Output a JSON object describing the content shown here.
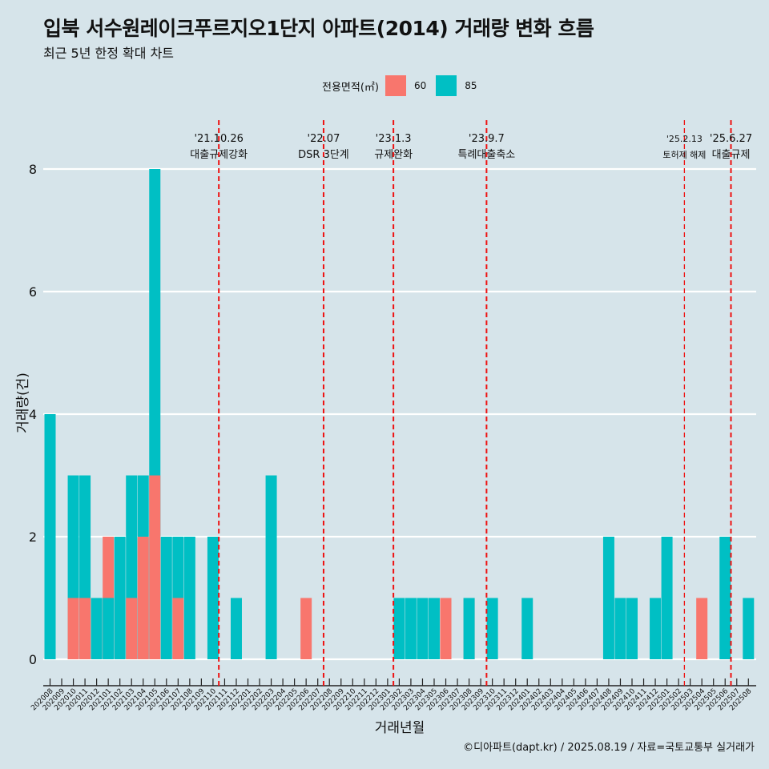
{
  "title": "입북 서수원레이크푸르지오1단지 아파트(2014) 거래량 변화 흐름",
  "subtitle": "최근 5년 한정 확대 차트",
  "legend": {
    "title": "전용면적(㎡)",
    "items": [
      {
        "label": "60",
        "color": "#f8766d"
      },
      {
        "label": "85",
        "color": "#00bfc4"
      }
    ]
  },
  "credit": "©디아파트(dapt.kr) / 2025.08.19 / 자료=국토교통부 실거래가",
  "chart_data": {
    "type": "bar",
    "xlabel": "거래년월",
    "ylabel": "거래량(건)",
    "ylim": [
      0,
      8
    ],
    "yticks": [
      0,
      2,
      4,
      6,
      8
    ],
    "grid": true,
    "legend_position": "top",
    "categories": [
      "202008",
      "202009",
      "202010",
      "202011",
      "202012",
      "202101",
      "202102",
      "202103",
      "202104",
      "202105",
      "202106",
      "202107",
      "202108",
      "202109",
      "202110",
      "202111",
      "202112",
      "202201",
      "202202",
      "202203",
      "202204",
      "202205",
      "202206",
      "202207",
      "202208",
      "202209",
      "202210",
      "202211",
      "202212",
      "202301",
      "202302",
      "202303",
      "202304",
      "202305",
      "202306",
      "202307",
      "202308",
      "202309",
      "202310",
      "202311",
      "202312",
      "202401",
      "202402",
      "202403",
      "202404",
      "202405",
      "202406",
      "202407",
      "202408",
      "202409",
      "202410",
      "202411",
      "202412",
      "202501",
      "202502",
      "202503",
      "202504",
      "202505",
      "202506",
      "202507",
      "202508"
    ],
    "series": [
      {
        "name": "60",
        "color": "#f8766d",
        "values": [
          0,
          0,
          1,
          1,
          1,
          2,
          0,
          1,
          2,
          3,
          0,
          1,
          0,
          0,
          0,
          0,
          0,
          0,
          0,
          0,
          0,
          0,
          1,
          0,
          0,
          0,
          0,
          0,
          0,
          0,
          0,
          0,
          0,
          0,
          1,
          0,
          1,
          0,
          0,
          0,
          0,
          0,
          0,
          0,
          0,
          0,
          0,
          0,
          0,
          1,
          0,
          0,
          0,
          0,
          0,
          0,
          1,
          0,
          0,
          0,
          0
        ]
      },
      {
        "name": "85",
        "color": "#00bfc4",
        "values": [
          4,
          0,
          3,
          3,
          1,
          1,
          2,
          3,
          3,
          8,
          2,
          2,
          2,
          0,
          2,
          0,
          1,
          0,
          0,
          3,
          0,
          0,
          0,
          0,
          0,
          0,
          0,
          0,
          0,
          0,
          1,
          1,
          1,
          1,
          0,
          0,
          1,
          0,
          1,
          0,
          0,
          1,
          0,
          0,
          0,
          0,
          0,
          0,
          2,
          1,
          1,
          0,
          1,
          2,
          0,
          0,
          0,
          0,
          2,
          0,
          1
        ]
      }
    ],
    "annotations": [
      {
        "after": "202110",
        "date": "'21.10.26",
        "label": "대출규제강화"
      },
      {
        "after": "202207",
        "date": "'22.07",
        "label": "DSR 3단계"
      },
      {
        "after": "202301",
        "date": "'23.1.3",
        "label": "규제완화"
      },
      {
        "after": "202309",
        "date": "'23.9.7",
        "label": "특례대출축소"
      },
      {
        "after": "202502",
        "date": "'25.2.13",
        "label": "토허제 해제"
      },
      {
        "after": "202506",
        "date": "'25.6.27",
        "label": "대출규제"
      }
    ]
  }
}
